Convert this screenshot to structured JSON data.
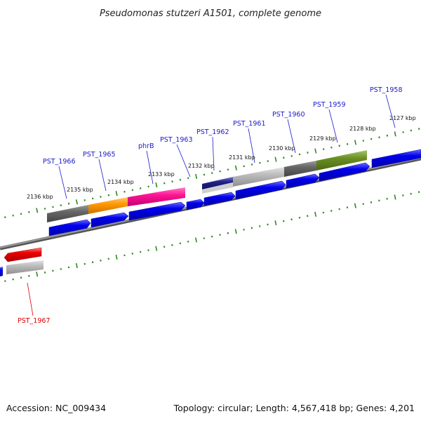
{
  "title": "Pseudomonas stutzeri A1501, complete genome",
  "footer": {
    "accession": "Accession: NC_009434",
    "summary": "Topology: circular; Length: 4,567,418 bp; Genes: 4,201"
  },
  "colors": {
    "backbone": "#777777",
    "tick": "#2d8a1f",
    "label_blue": "#1a1acc",
    "label_red": "#dd0000",
    "gene_blue": "#0000ee",
    "gene_red": "#ee0000",
    "gene_gray_dark": "#666666",
    "gene_gray_light": "#bbbbbb",
    "gene_orange": "#ff9900",
    "gene_pink": "#ff1493",
    "gene_olive": "#6b8e23",
    "gene_navy": "#22228b"
  },
  "scale": {
    "ticks": [
      {
        "label": "2136 kbp"
      },
      {
        "label": "2135 kbp"
      },
      {
        "label": "2134 kbp"
      },
      {
        "label": "2133 kbp"
      },
      {
        "label": "2132 kbp"
      },
      {
        "label": "2131 kbp"
      },
      {
        "label": "2130 kbp"
      },
      {
        "label": "2129 kbp"
      },
      {
        "label": "2128 kbp"
      },
      {
        "label": "2127 kbp"
      }
    ]
  },
  "genes": [
    {
      "name": "PST_1966",
      "color": "#1a1acc"
    },
    {
      "name": "PST_1965",
      "color": "#1a1acc"
    },
    {
      "name": "phrB",
      "color": "#1a1acc"
    },
    {
      "name": "PST_1963",
      "color": "#1a1acc"
    },
    {
      "name": "PST_1962",
      "color": "#1a1acc"
    },
    {
      "name": "PST_1961",
      "color": "#1a1acc"
    },
    {
      "name": "PST_1960",
      "color": "#1a1acc"
    },
    {
      "name": "PST_1959",
      "color": "#1a1acc"
    },
    {
      "name": "PST_1958",
      "color": "#1a1acc"
    },
    {
      "name": "PST_1967",
      "color": "#dd0000"
    }
  ]
}
